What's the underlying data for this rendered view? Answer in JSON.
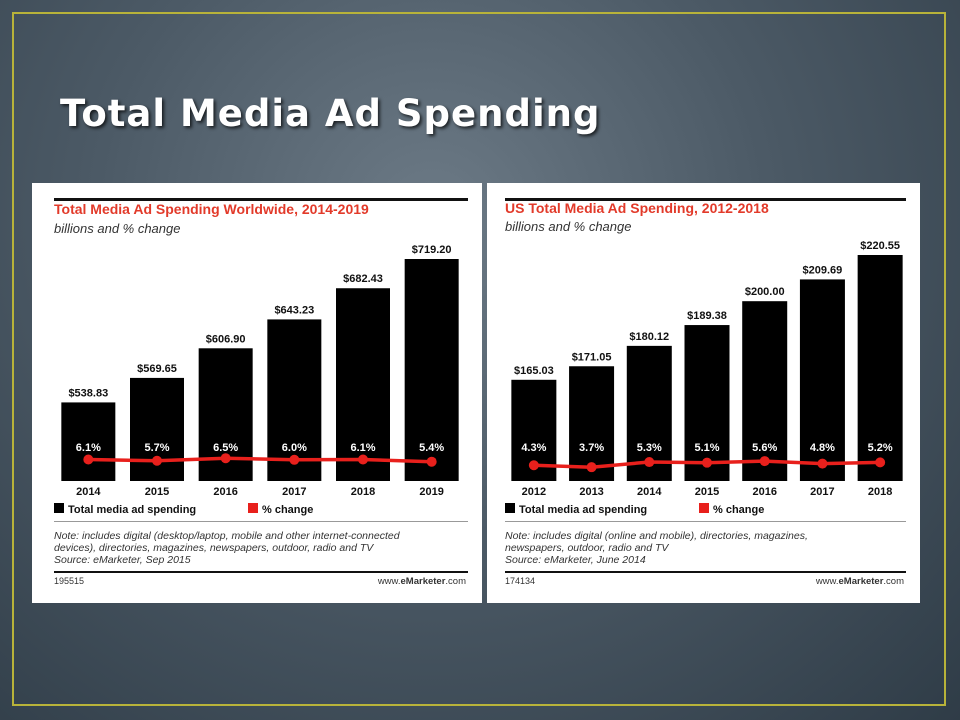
{
  "slide": {
    "title": "Total Media Ad Spending"
  },
  "chart_data": [
    {
      "type": "bar",
      "title": "Total Media Ad Spending Worldwide, 2014-2019",
      "subtitle": "billions and % change",
      "categories": [
        "2014",
        "2015",
        "2016",
        "2017",
        "2018",
        "2019"
      ],
      "series": [
        {
          "name": "Total media ad spending",
          "values": [
            538.83,
            569.65,
            606.9,
            643.23,
            682.43,
            719.2
          ],
          "labels": [
            "$538.83",
            "$569.65",
            "$606.90",
            "$643.23",
            "$682.43",
            "$719.20"
          ]
        },
        {
          "name": "% change",
          "type": "line",
          "values": [
            6.1,
            5.7,
            6.5,
            6.0,
            6.1,
            5.4
          ],
          "labels": [
            "6.1%",
            "5.7%",
            "6.5%",
            "6.0%",
            "6.1%",
            "5.4%"
          ]
        }
      ],
      "note": [
        "Note: includes digital (desktop/laptop, mobile and other internet-connected",
        "devices), directories, magazines, newspapers, outdoor, radio and TV",
        "Source: eMarketer, Sep 2015"
      ],
      "footer_id": "195515",
      "footer_site_prefix": "www.",
      "footer_site_brand": "eMarketer",
      "footer_site_suffix": ".com",
      "colors": {
        "bar": "#000000",
        "line": "#e8201c",
        "title": "#e23a2a"
      },
      "legend": "bottom"
    },
    {
      "type": "bar",
      "title": "US Total Media Ad Spending, 2012-2018",
      "subtitle": "billions and % change",
      "categories": [
        "2012",
        "2013",
        "2014",
        "2015",
        "2016",
        "2017",
        "2018"
      ],
      "series": [
        {
          "name": "Total media ad spending",
          "values": [
            165.03,
            171.05,
            180.12,
            189.38,
            200.0,
            209.69,
            220.55
          ],
          "labels": [
            "$165.03",
            "$171.05",
            "$180.12",
            "$189.38",
            "$200.00",
            "$209.69",
            "$220.55"
          ]
        },
        {
          "name": "% change",
          "type": "line",
          "values": [
            4.3,
            3.7,
            5.3,
            5.1,
            5.6,
            4.8,
            5.2
          ],
          "labels": [
            "4.3%",
            "3.7%",
            "5.3%",
            "5.1%",
            "5.6%",
            "4.8%",
            "5.2%"
          ]
        }
      ],
      "note": [
        "Note: includes digital (online and mobile), directories, magazines,",
        "newspapers, outdoor, radio and TV",
        "Source: eMarketer, June 2014"
      ],
      "footer_id": "174134",
      "footer_site_prefix": "www.",
      "footer_site_brand": "eMarketer",
      "footer_site_suffix": ".com",
      "colors": {
        "bar": "#000000",
        "line": "#e8201c",
        "title": "#e23a2a"
      },
      "legend": "bottom"
    }
  ]
}
